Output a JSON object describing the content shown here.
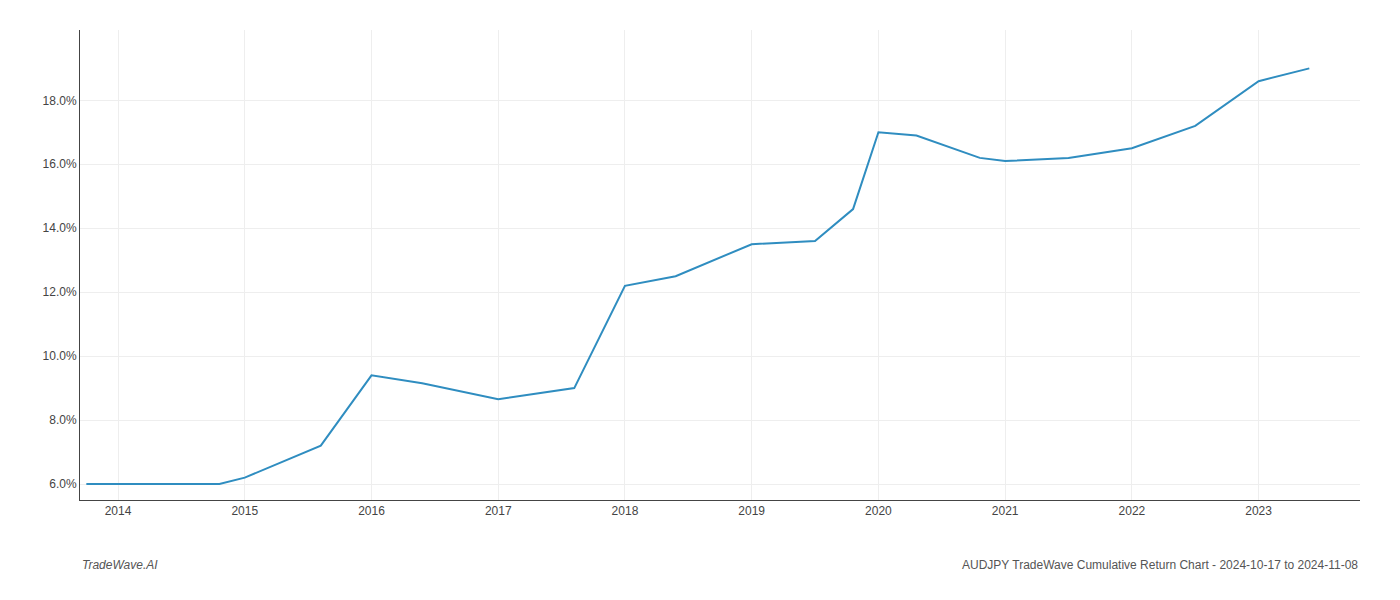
{
  "chart_data": {
    "type": "line",
    "x": [
      2013.75,
      2014.0,
      2014.8,
      2015.0,
      2015.6,
      2016.0,
      2016.4,
      2017.0,
      2017.6,
      2018.0,
      2018.4,
      2019.0,
      2019.5,
      2019.8,
      2020.0,
      2020.3,
      2020.8,
      2021.0,
      2021.5,
      2022.0,
      2022.5,
      2023.0,
      2023.4
    ],
    "values": [
      6.0,
      6.0,
      6.0,
      6.2,
      7.2,
      9.4,
      9.15,
      8.65,
      9.0,
      12.2,
      12.5,
      13.5,
      13.6,
      14.6,
      17.0,
      16.9,
      16.2,
      16.1,
      16.2,
      16.5,
      17.2,
      18.6,
      19.0
    ],
    "color": "#2f8dc0",
    "xlim": [
      2013.7,
      2023.8
    ],
    "ylim": [
      5.5,
      20.2
    ],
    "xticks": [
      2014,
      2015,
      2016,
      2017,
      2018,
      2019,
      2020,
      2021,
      2022,
      2023
    ],
    "yticks": [
      {
        "value": 6.0,
        "label": "6.0%"
      },
      {
        "value": 8.0,
        "label": "8.0%"
      },
      {
        "value": 10.0,
        "label": "10.0%"
      },
      {
        "value": 12.0,
        "label": "12.0%"
      },
      {
        "value": 14.0,
        "label": "14.0%"
      },
      {
        "value": 16.0,
        "label": "16.0%"
      },
      {
        "value": 18.0,
        "label": "18.0%"
      }
    ],
    "grid": true,
    "annotations": [
      "TradeWave.AI",
      "AUDJPY TradeWave Cumulative Return Chart - 2024-10-17 to 2024-11-08"
    ]
  }
}
